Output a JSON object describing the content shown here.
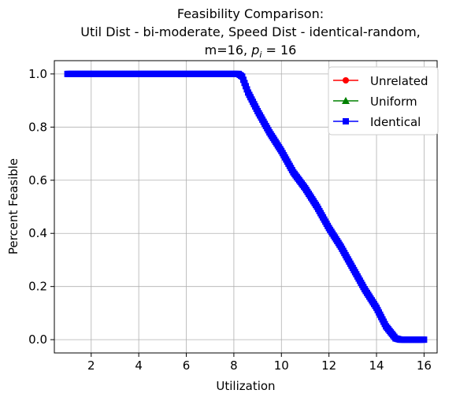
{
  "chart_data": {
    "type": "line",
    "title": {
      "line1": "Feasibility Comparison:",
      "line2": "Util Dist - bi-moderate, Speed Dist - identical-random,",
      "line3_prefix": "m=16, ",
      "line3_p": "p",
      "line3_i": "i",
      "line3_suffix": " = 16"
    },
    "xlabel": "Utilization",
    "ylabel": "Percent Feasible",
    "xlim": [
      0.45,
      16.55
    ],
    "ylim": [
      -0.05,
      1.05
    ],
    "xticks": [
      2,
      4,
      6,
      8,
      10,
      12,
      14,
      16
    ],
    "yticks": [
      0.0,
      0.2,
      0.4,
      0.6,
      0.8,
      1.0
    ],
    "ytick_labels": [
      "0.0",
      "0.2",
      "0.4",
      "0.6",
      "0.8",
      "1.0"
    ],
    "grid": true,
    "legend_position": "top-right",
    "series": [
      {
        "name": "Unrelated",
        "color": "#ff0000",
        "marker": "circle",
        "visible": false
      },
      {
        "name": "Uniform",
        "color": "#008000",
        "marker": "triangle",
        "visible": false
      },
      {
        "name": "Identical",
        "color": "#0000ff",
        "marker": "square",
        "visible": true
      }
    ],
    "curve_knots": [
      [
        1.0,
        1.0
      ],
      [
        8.2,
        1.0
      ],
      [
        8.35,
        0.99
      ],
      [
        8.6,
        0.93
      ],
      [
        9.0,
        0.86
      ],
      [
        9.5,
        0.78
      ],
      [
        10.0,
        0.71
      ],
      [
        10.5,
        0.63
      ],
      [
        11.0,
        0.57
      ],
      [
        11.5,
        0.5
      ],
      [
        12.0,
        0.42
      ],
      [
        12.5,
        0.35
      ],
      [
        13.0,
        0.27
      ],
      [
        13.5,
        0.19
      ],
      [
        14.0,
        0.12
      ],
      [
        14.4,
        0.05
      ],
      [
        14.8,
        0.005
      ],
      [
        15.0,
        0.0
      ],
      [
        16.0,
        0.0
      ]
    ],
    "sample_step": 0.05
  }
}
